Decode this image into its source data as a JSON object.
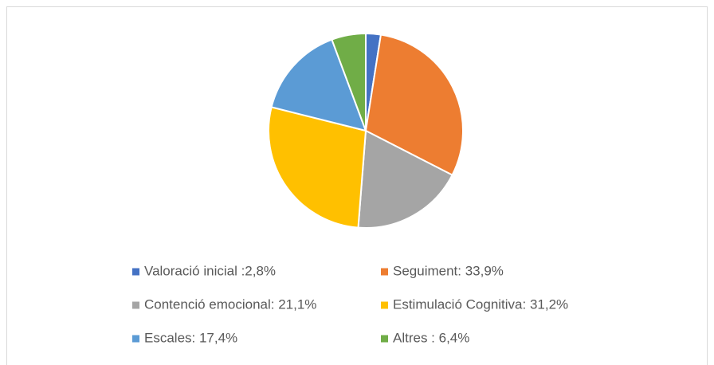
{
  "chart_data": {
    "type": "pie",
    "categories": [
      "Valoració inicial :2,8%",
      "Seguiment: 33,9%",
      "Contenció emocional: 21,1%",
      "Estimulació Cognitiva: 31,2%",
      "Escales: 17,4%",
      "Altres : 6,4%"
    ],
    "values": [
      2.8,
      33.9,
      21.1,
      31.2,
      17.4,
      6.4
    ],
    "colors": [
      "#4472c4",
      "#ed7d31",
      "#a5a5a5",
      "#ffc000",
      "#5b9bd5",
      "#70ad47"
    ],
    "legend": "bottom"
  }
}
